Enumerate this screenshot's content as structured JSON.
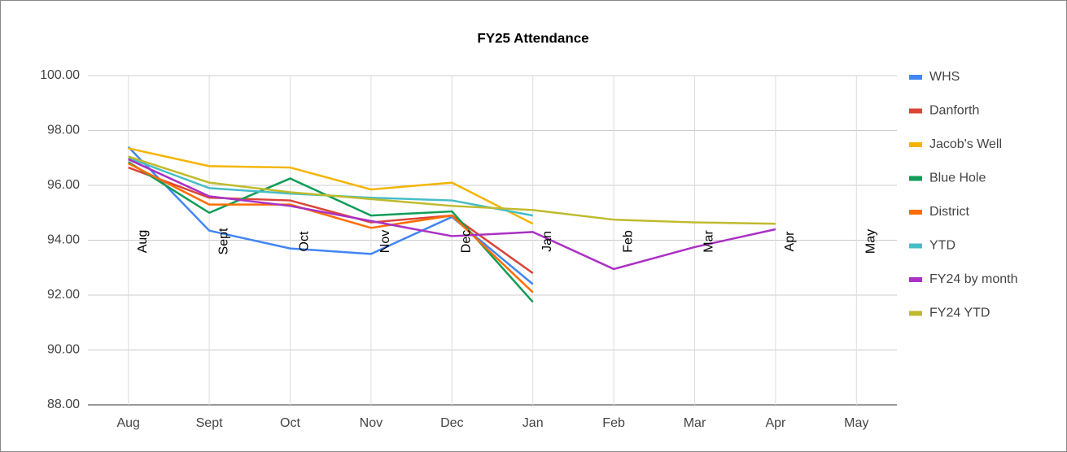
{
  "chart_data": {
    "type": "line",
    "title": "FY25 Attendance",
    "categories": [
      "Aug",
      "Sept",
      "Oct",
      "Nov",
      "Dec",
      "Jan",
      "Feb",
      "Mar",
      "Apr",
      "May"
    ],
    "series": [
      {
        "name": "WHS",
        "color": "#4285f4",
        "values": [
          97.4,
          94.35,
          93.7,
          93.5,
          94.85,
          92.4,
          null,
          null,
          null,
          null
        ]
      },
      {
        "name": "Danforth",
        "color": "#db4437",
        "values": [
          96.65,
          95.55,
          95.45,
          94.65,
          94.9,
          92.8,
          null,
          null,
          null,
          null
        ]
      },
      {
        "name": "Jacob's Well",
        "color": "#f4b400",
        "values": [
          97.35,
          96.7,
          96.65,
          95.85,
          96.1,
          94.6,
          null,
          null,
          null,
          null
        ]
      },
      {
        "name": "Blue Hole",
        "color": "#0f9d58",
        "values": [
          96.85,
          95.0,
          96.25,
          94.9,
          95.05,
          91.75,
          null,
          null,
          null,
          null
        ]
      },
      {
        "name": "District",
        "color": "#ff6d01",
        "values": [
          96.8,
          95.3,
          95.3,
          94.45,
          94.9,
          92.1,
          null,
          null,
          null,
          null
        ]
      },
      {
        "name": "YTD",
        "color": "#46bdc6",
        "values": [
          97.0,
          95.9,
          95.7,
          95.55,
          95.45,
          94.9,
          null,
          null,
          null,
          null
        ]
      },
      {
        "name": "FY24 by month",
        "color": "#ab30c4",
        "values": [
          96.95,
          95.6,
          95.25,
          94.7,
          94.15,
          94.3,
          92.95,
          93.75,
          94.4,
          null
        ]
      },
      {
        "name": "FY24 YTD",
        "color": "#c0ba2d",
        "values": [
          97.05,
          96.1,
          95.75,
          95.5,
          95.25,
          95.1,
          94.75,
          94.65,
          94.6,
          null
        ]
      }
    ],
    "ylim": [
      88,
      100
    ],
    "yticks": [
      {
        "value": 88,
        "label": "88.00"
      },
      {
        "value": 90,
        "label": "90.00"
      },
      {
        "value": 92,
        "label": "92.00"
      },
      {
        "value": 94,
        "label": "94.00"
      },
      {
        "value": 96,
        "label": "96.00"
      },
      {
        "value": 98,
        "label": "98.00"
      },
      {
        "value": 100,
        "label": "100.00"
      }
    ],
    "grid": true,
    "legend": "right"
  }
}
